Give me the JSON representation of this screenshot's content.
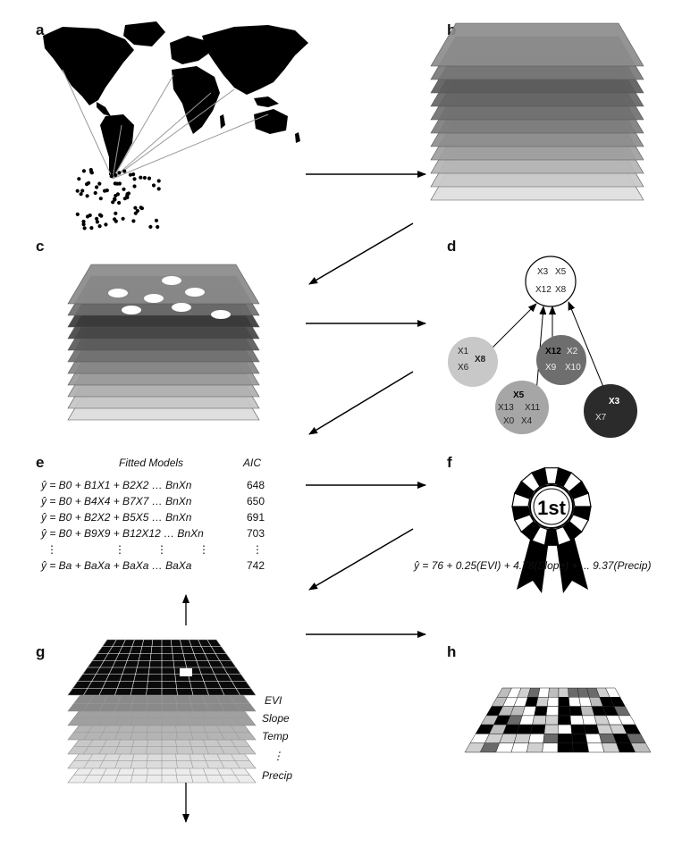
{
  "panels": {
    "a": "a",
    "b": "b",
    "c": "c",
    "d": "d",
    "e": "e",
    "f": "f",
    "g": "g",
    "h": "h"
  },
  "panel_d": {
    "top_node": [
      "X3",
      "X5",
      "X12",
      "X8"
    ],
    "node1": [
      "X1",
      "X6",
      "X8"
    ],
    "node2": [
      "X12",
      "X2",
      "X9",
      "X10"
    ],
    "node3": [
      "X5",
      "X13",
      "X11",
      "X0",
      "X4"
    ],
    "node4": [
      "X3",
      "X7"
    ]
  },
  "panel_e": {
    "header_models": "Fitted Models",
    "header_aic": "AIC",
    "rows": [
      {
        "model": "ŷ = B0 + B1X1 + B2X2 … BnXn",
        "aic": "648"
      },
      {
        "model": "ŷ = B0 + B4X4 + B7X7 … BnXn",
        "aic": "650"
      },
      {
        "model": "ŷ = B0 + B2X2 + B5X5 … BnXn",
        "aic": "691"
      },
      {
        "model": "ŷ = B0 + B9X9 + B12X12 … BnXn",
        "aic": "703"
      },
      {
        "model": "ŷ = Ba + BaXa + BaXa … BaXa",
        "aic": "742"
      }
    ]
  },
  "panel_f": {
    "ribbon_text": "1st",
    "equation": "ŷ = 76 + 0.25(EVI) + 4.78(Slope) + ... 9.37(Precip)"
  },
  "panel_g": {
    "layers": [
      "EVI",
      "Slope",
      "Temp",
      "⋮",
      "Precip"
    ]
  }
}
